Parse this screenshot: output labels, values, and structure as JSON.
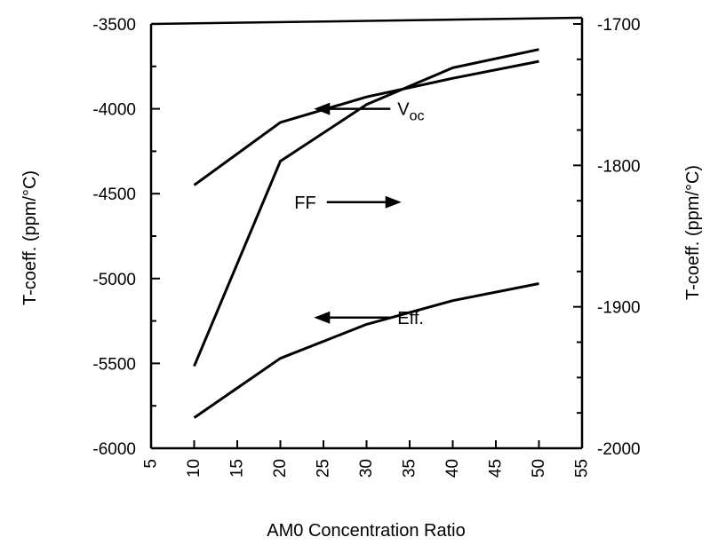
{
  "chart_data": {
    "type": "line",
    "xlabel": "AM0 Concentration Ratio",
    "ylabel_left": "T-coeff. (ppm/°C)",
    "ylabel_right": "T-coeff. (ppm/°C)",
    "xlim": [
      5,
      55
    ],
    "ylim_left": [
      -6000,
      -3500
    ],
    "ylim_right": [
      -2000,
      -1700
    ],
    "x_ticks": [
      5,
      10,
      15,
      20,
      25,
      30,
      35,
      40,
      45,
      50,
      55
    ],
    "y_ticks_left": [
      -6000,
      -5500,
      -5000,
      -4500,
      -4000,
      -3500
    ],
    "y_ticks_right": [
      -2000,
      -1900,
      -1800,
      -1700
    ],
    "grid": false,
    "series": [
      {
        "name": "Voc",
        "axis": "left",
        "x": [
          10,
          20,
          30,
          40,
          50
        ],
        "y": [
          -4450,
          -4080,
          -3930,
          -3820,
          -3720
        ]
      },
      {
        "name": "FF",
        "axis": "right",
        "x": [
          10,
          20,
          30,
          40,
          50
        ],
        "y": [
          -1942,
          -1797,
          -1757,
          -1731,
          -1718
        ]
      },
      {
        "name": "Eff.",
        "axis": "left",
        "x": [
          10,
          20,
          30,
          40,
          50
        ],
        "y": [
          -5820,
          -5470,
          -5270,
          -5130,
          -5030
        ]
      }
    ],
    "annotations": [
      {
        "text_main": "V",
        "text_sub": "oc",
        "arrow": "left",
        "x": 34,
        "y": -4000,
        "axis": "left"
      },
      {
        "text_main": "FF",
        "text_sub": "",
        "arrow": "right",
        "x": 26,
        "y": -4550,
        "axis": "left"
      },
      {
        "text_main": "Eff.",
        "text_sub": "",
        "arrow": "left",
        "x": 34,
        "y": -5230,
        "axis": "left"
      }
    ]
  },
  "colors": {
    "line": "#000000",
    "background": "#ffffff"
  }
}
